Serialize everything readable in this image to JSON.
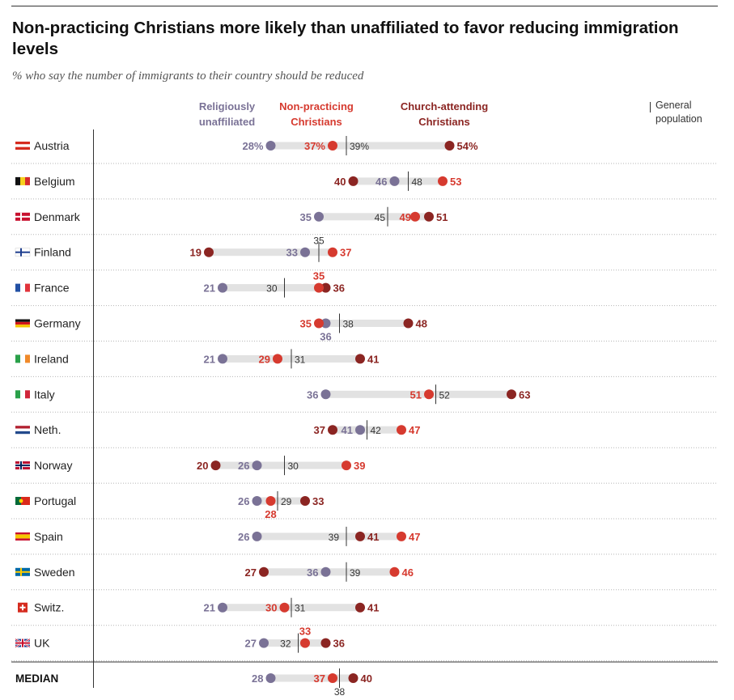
{
  "title": "Non-practicing Christians more likely than unaffiliated to favor reducing immigration levels",
  "subtitle": "% who say the number of immigrants to their country should be reduced",
  "legend": {
    "unaffiliated": "Religiously unaffiliated",
    "nonpracticing": "Non-practicing Christians",
    "church": "Church-attending Christians",
    "general": "General population"
  },
  "colors": {
    "unaffiliated": "#7a7296",
    "nonpracticing": "#d63a2f",
    "church": "#8b2522",
    "bar": "#e2e2e2",
    "general": "#333333"
  },
  "chart_data": {
    "type": "dot-plot",
    "title": "Non-practicing Christians more likely than unaffiliated to favor reducing immigration levels",
    "subtitle": "% who say the number of immigrants to their country should be reduced",
    "series": [
      {
        "name": "Religiously unaffiliated",
        "key": "unaffiliated"
      },
      {
        "name": "Non-practicing Christians",
        "key": "nonpracticing"
      },
      {
        "name": "Church-attending Christians",
        "key": "church"
      },
      {
        "name": "General population",
        "key": "general"
      }
    ],
    "xlim": [
      15,
      65
    ],
    "grid": false,
    "legend_position": "top",
    "rows": [
      {
        "label": "Austria",
        "flag": "austria",
        "unaffiliated": 28,
        "nonpracticing": 37,
        "church": 54,
        "general": 39,
        "pct": true
      },
      {
        "label": "Belgium",
        "flag": "belgium",
        "unaffiliated": 46,
        "nonpracticing": 53,
        "church": 40,
        "general": 48
      },
      {
        "label": "Denmark",
        "flag": "denmark",
        "unaffiliated": 35,
        "nonpracticing": 49,
        "church": 51,
        "general": 45
      },
      {
        "label": "Finland",
        "flag": "finland",
        "unaffiliated": 33,
        "nonpracticing": 37,
        "church": 19,
        "general": 35
      },
      {
        "label": "France",
        "flag": "france",
        "unaffiliated": 21,
        "nonpracticing": 35,
        "church": 36,
        "general": 30
      },
      {
        "label": "Germany",
        "flag": "germany",
        "unaffiliated": 36,
        "nonpracticing": 35,
        "church": 48,
        "general": 38
      },
      {
        "label": "Ireland",
        "flag": "ireland",
        "unaffiliated": 21,
        "nonpracticing": 29,
        "church": 41,
        "general": 31
      },
      {
        "label": "Italy",
        "flag": "italy",
        "unaffiliated": 36,
        "nonpracticing": 51,
        "church": 63,
        "general": 52
      },
      {
        "label": "Neth.",
        "flag": "netherlands",
        "unaffiliated": 41,
        "nonpracticing": 47,
        "church": 37,
        "general": 42
      },
      {
        "label": "Norway",
        "flag": "norway",
        "unaffiliated": 26,
        "nonpracticing": 39,
        "church": 20,
        "general": 30
      },
      {
        "label": "Portugal",
        "flag": "portugal",
        "unaffiliated": 26,
        "nonpracticing": 28,
        "church": 33,
        "general": 29
      },
      {
        "label": "Spain",
        "flag": "spain",
        "unaffiliated": 26,
        "nonpracticing": 47,
        "church": 41,
        "general": 39
      },
      {
        "label": "Sweden",
        "flag": "sweden",
        "unaffiliated": 36,
        "nonpracticing": 46,
        "church": 27,
        "general": 39
      },
      {
        "label": "Switz.",
        "flag": "switzerland",
        "unaffiliated": 21,
        "nonpracticing": 30,
        "church": 41,
        "general": 31
      },
      {
        "label": "UK",
        "flag": "uk",
        "unaffiliated": 27,
        "nonpracticing": 33,
        "church": 36,
        "general": 32
      },
      {
        "label": "MEDIAN",
        "flag": null,
        "unaffiliated": 28,
        "nonpracticing": 37,
        "church": 40,
        "general": 38,
        "median": true
      }
    ]
  }
}
